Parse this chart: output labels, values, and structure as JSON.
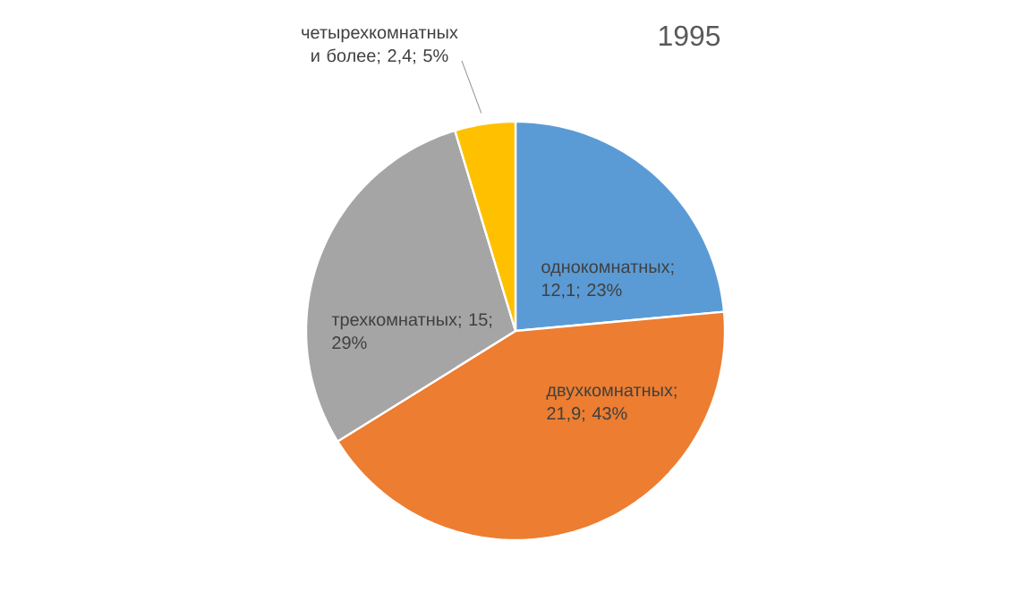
{
  "chart_data": {
    "type": "pie",
    "title": "1995",
    "categories": [
      "однокомнатных",
      "двухкомнатных",
      "трехкомнатных",
      "четырехкомнатных и более"
    ],
    "values": [
      12.1,
      21.9,
      15,
      2.4
    ],
    "value_labels": [
      "; 12,1; 23%",
      "; 21,9; 43%",
      "; 15; 29%",
      "; 2,4; 5%"
    ],
    "colors": [
      "#5b9bd5",
      "#ed7d31",
      "#a5a5a5",
      "#ffc000"
    ]
  }
}
